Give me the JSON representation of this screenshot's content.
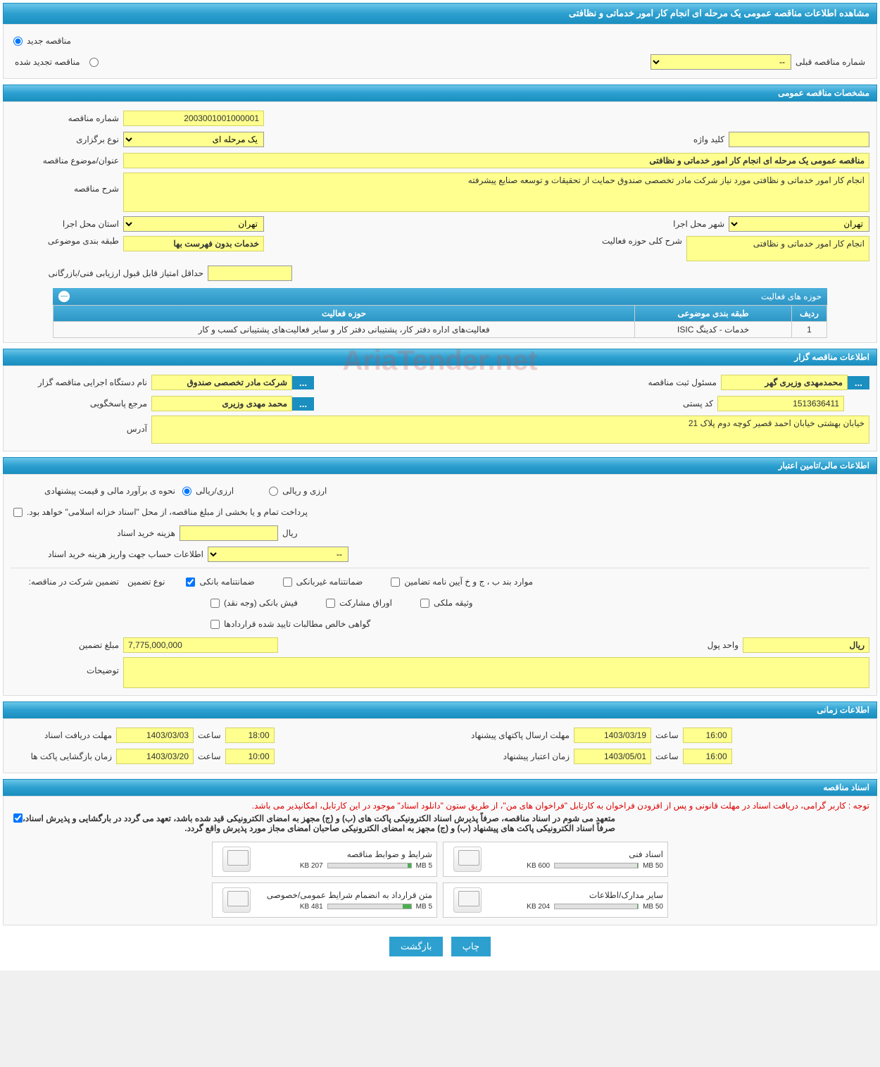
{
  "page_title": "مشاهده اطلاعات مناقصه عمومی یک مرحله ای انجام کار امور خدماتی و نظافتی",
  "tender_status": {
    "new_label": "مناقصه جدید",
    "renewed_label": "مناقصه تجدید شده",
    "prev_number_label": "شماره مناقصه قبلی",
    "prev_number_value": "--"
  },
  "general_section_title": "مشخصات مناقصه عمومی",
  "general": {
    "number_label": "شماره مناقصه",
    "number_value": "2003001001000001",
    "type_label": "نوع برگزاری",
    "type_value": "یک مرحله ای",
    "keyword_label": "کلید واژه",
    "keyword_value": "",
    "subject_label": "عنوان/موضوع مناقصه",
    "subject_value": "مناقصه عمومی یک مرحله ای انجام کار امور خدماتی و نظافتی",
    "desc_label": "شرح مناقصه",
    "desc_value": "انجام کار امور خدماتی و نظافتی مورد نیاز شرکت مادر تخصصی صندوق حمایت از تحقیقات و توسعه صنایع پیشرفته",
    "province_label": "استان محل اجرا",
    "province_value": "تهران",
    "city_label": "شهر محل اجرا",
    "city_value": "تهران",
    "classification_label": "طبقه بندی موضوعی",
    "classification_value": "خدمات بدون فهرست بها",
    "activity_desc_label": "شرح کلی حوزه فعالیت",
    "activity_desc_value": "انجام کار امور خدماتی و نظافتی",
    "min_score_label": "حداقل امتیاز قابل قبول ارزیابی فنی/بازرگانی",
    "min_score_value": ""
  },
  "activity_areas": {
    "title": "حوزه های فعالیت",
    "columns": [
      "ردیف",
      "طبقه بندی موضوعی",
      "حوزه فعالیت"
    ],
    "rows": [
      [
        "1",
        "خدمات - کدینگ ISIC",
        "فعالیت‌های  اداره دفتر کار، پشتیبانی دفتر کار و سایر فعالیت‌های پشتیبانی کسب و کار"
      ]
    ]
  },
  "organizer_section_title": "اطلاعات مناقصه گزار",
  "organizer": {
    "org_label": "نام دستگاه اجرایی مناقصه گزار",
    "org_value": "شرکت مادر تخصصی صندوق",
    "registrant_label": "مسئول ثبت مناقصه",
    "registrant_value": "محمدمهدی وزیری گهر",
    "contact_label": "مرجع پاسخگویی",
    "contact_value": "محمد مهدی وزیری",
    "postal_label": "کد پستی",
    "postal_value": "1513636411",
    "address_label": "آدرس",
    "address_value": "خیابان بهشتی خیابان احمد قصیر کوچه دوم پلاک 21"
  },
  "financial_section_title": "اطلاعات مالی/تامین اعتبار",
  "financial": {
    "method_label": "نحوه ی برآورد مالی و قیمت پیشنهادی",
    "rial_label": "ارزی/ریالی",
    "both_label": "ارزی و ریالی",
    "treasury_note": "پرداخت تمام و یا بخشی از مبلغ مناقصه، از محل \"اسناد خزانه اسلامی\" خواهد بود.",
    "cost_label": "هزینه خرید اسناد",
    "cost_unit": "ریال",
    "account_label": "اطلاعات حساب جهت واریز هزینه خرید اسناد",
    "account_value": "--",
    "guarantee_label": "تضمین شرکت در مناقصه:",
    "guarantee_type_label": "نوع تضمین",
    "g_bank": "ضمانتنامه بانکی",
    "g_nonbank": "ضمانتنامه غیربانکی",
    "g_bylaw": "موارد بند ب ، ج و خ آیین نامه تضامین",
    "g_cash": "فیش بانکی (وجه نقد)",
    "g_securities": "اوراق مشارکت",
    "g_property": "وثیقه ملکی",
    "g_receivables": "گواهی خالص مطالبات تایید شده قراردادها",
    "amount_label": "مبلغ تضمین",
    "amount_value": "7,775,000,000",
    "unit_label": "واحد پول",
    "unit_value": "ریال",
    "notes_label": "توضیحات"
  },
  "time_section_title": "اطلاعات زمانی",
  "time": {
    "receive_label": "مهلت دریافت اسناد",
    "receive_date": "1403/03/03",
    "receive_time": "18:00",
    "open_label": "زمان بازگشایی پاکت ها",
    "open_date": "1403/03/20",
    "open_time": "10:00",
    "submit_label": "مهلت ارسال پاکتهای پیشنهاد",
    "submit_date": "1403/03/19",
    "submit_time": "16:00",
    "validity_label": "زمان اعتبار پیشنهاد",
    "validity_date": "1403/05/01",
    "validity_time": "16:00",
    "hour_label": "ساعت"
  },
  "docs_section_title": "اسناد مناقصه",
  "docs": {
    "red_note": "توجه : کاربر گرامی، دریافت اسناد در مهلت قانونی و پس از افزودن فراخوان به کارتابل \"فراخوان های من\"، از طریق ستون \"دانلود اسناد\" موجود در این کارتابل، امکانپذیر می باشد.",
    "commit_note1": "متعهد می شوم در اسناد مناقصه، صرفاً پذیرش اسناد الکترونیکی پاکت های (ب) و (ج) مجهز به امضای الکترونیکی قید شده باشد، تعهد می گردد در بارگشایی و پذیرش اسناد،",
    "commit_note2": "صرفاً اسناد الکترونیکی پاکت های پیشنهاد (ب) و (ج) مجهز به امضای الکترونیکی صاحبان امضای مجاز مورد پذیرش واقع گردد.",
    "files": [
      {
        "name": "شرایط و ضوابط مناقصه",
        "used": "207 KB",
        "total": "5 MB",
        "pct": 4
      },
      {
        "name": "اسناد فنی",
        "used": "600 KB",
        "total": "50 MB",
        "pct": 1
      },
      {
        "name": "متن قرارداد به انضمام شرایط عمومی/خصوصی",
        "used": "481 KB",
        "total": "5 MB",
        "pct": 10
      },
      {
        "name": "سایر مدارک/اطلاعات",
        "used": "204 KB",
        "total": "50 MB",
        "pct": 1
      }
    ]
  },
  "buttons": {
    "print": "چاپ",
    "back": "بازگشت"
  },
  "watermark": "AriaTender.net"
}
